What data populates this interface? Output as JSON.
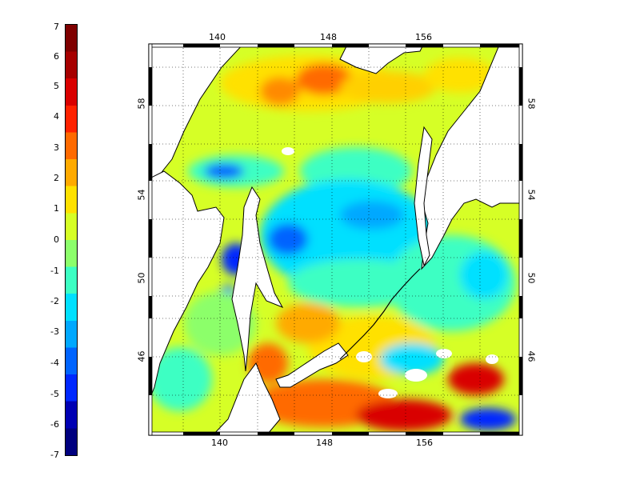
{
  "colorbar": {
    "ticks": [
      "7",
      "6",
      "5",
      "4",
      "3",
      "2",
      "1",
      "0",
      "-1",
      "-2",
      "-3",
      "-4",
      "-5",
      "-6",
      "-7"
    ],
    "min": -7,
    "max": 7,
    "colors": [
      "#7f0000",
      "#a60000",
      "#d90000",
      "#ff2200",
      "#ff6a00",
      "#ffaa00",
      "#ffe100",
      "#d6ff26",
      "#8cff6b",
      "#3cffc3",
      "#00e0ff",
      "#00a8ff",
      "#0064ff",
      "#0028ff",
      "#0000b3",
      "#00007f"
    ]
  },
  "map": {
    "lon_ticks": [
      "140",
      "148",
      "156"
    ],
    "lat_ticks": [
      "58",
      "54",
      "50",
      "46"
    ]
  }
}
